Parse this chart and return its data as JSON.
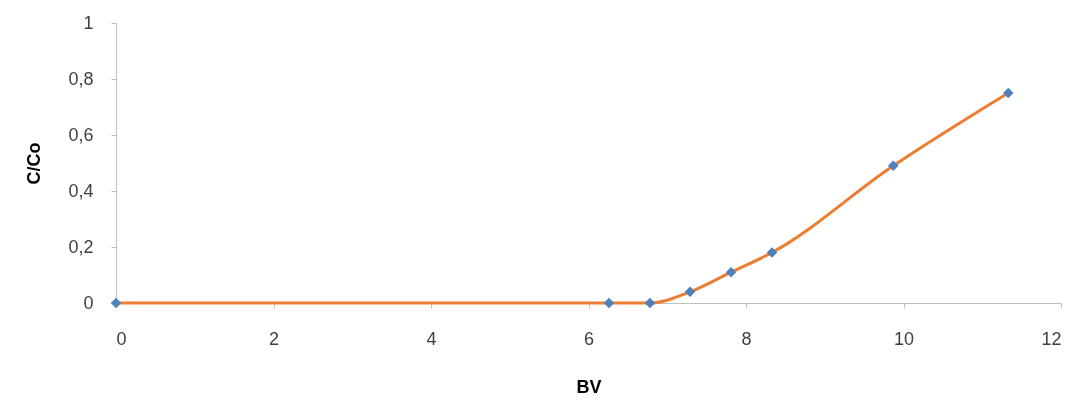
{
  "chart_data": {
    "type": "line",
    "xlabel": "BV",
    "ylabel": "C/Co",
    "xlim": [
      0,
      12
    ],
    "xticks": [
      0,
      2,
      4,
      6,
      8,
      10,
      12
    ],
    "ylim": [
      0,
      1
    ],
    "yticks": [
      0,
      {
        "value": 0.2,
        "label": "0,2"
      },
      {
        "value": 0.4,
        "label": "0,4"
      },
      {
        "value": 0.6,
        "label": "0,6"
      },
      {
        "value": 0.8,
        "label": "0,8"
      },
      1
    ],
    "grid": false,
    "series": [
      {
        "color": "#ed7d31",
        "marker": "none",
        "x": [
          0,
          6.26,
          6.78,
          7.29,
          7.81,
          8.33,
          9.87,
          11.33
        ],
        "values": [
          0,
          0,
          0,
          0.04,
          0.11,
          0.18,
          0.49,
          0.75
        ]
      },
      {
        "type": "scatter",
        "color": "#4f81bd",
        "marker": "diamond",
        "x": [
          0,
          6.26,
          6.78,
          7.29,
          7.81,
          8.33,
          9.87,
          11.33
        ],
        "values": [
          0,
          0,
          0,
          0.04,
          0.11,
          0.18,
          0.49,
          0.75
        ]
      }
    ]
  }
}
